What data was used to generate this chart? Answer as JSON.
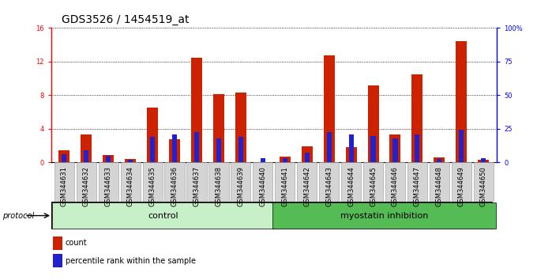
{
  "title": "GDS3526 / 1454519_at",
  "samples": [
    "GSM344631",
    "GSM344632",
    "GSM344633",
    "GSM344634",
    "GSM344635",
    "GSM344636",
    "GSM344637",
    "GSM344638",
    "GSM344639",
    "GSM344640",
    "GSM344641",
    "GSM344642",
    "GSM344643",
    "GSM344644",
    "GSM344645",
    "GSM344646",
    "GSM344647",
    "GSM344648",
    "GSM344649",
    "GSM344650"
  ],
  "count_values": [
    1.4,
    3.3,
    0.9,
    0.4,
    6.5,
    2.8,
    12.5,
    8.1,
    8.3,
    0.05,
    0.7,
    1.9,
    12.7,
    1.8,
    9.2,
    3.3,
    10.5,
    0.6,
    14.4,
    0.3
  ],
  "percentile_values": [
    0.95,
    1.45,
    0.75,
    0.28,
    3.0,
    3.35,
    3.6,
    2.9,
    3.0,
    0.48,
    0.48,
    1.15,
    3.6,
    3.35,
    3.1,
    2.9,
    3.35,
    0.38,
    3.85,
    0.48
  ],
  "protocol_groups": [
    {
      "label": "control",
      "start": 0,
      "end": 10,
      "color": "#c8f0c8"
    },
    {
      "label": "myostatin inhibition",
      "start": 10,
      "end": 20,
      "color": "#55bb55"
    }
  ],
  "ylim_left": [
    0,
    16
  ],
  "ylim_right": [
    0,
    100
  ],
  "yticks_left": [
    0,
    4,
    8,
    12,
    16
  ],
  "yticks_right": [
    0,
    25,
    50,
    75,
    100
  ],
  "bar_width": 0.5,
  "pct_bar_width": 0.22,
  "count_color": "#cc2200",
  "percentile_color": "#2222cc",
  "background_color": "#ffffff",
  "plot_bg_color": "#ffffff",
  "xtick_box_color": "#d8d8d8",
  "title_fontsize": 10,
  "tick_fontsize": 6,
  "proto_fontsize": 8,
  "legend_fontsize": 7
}
